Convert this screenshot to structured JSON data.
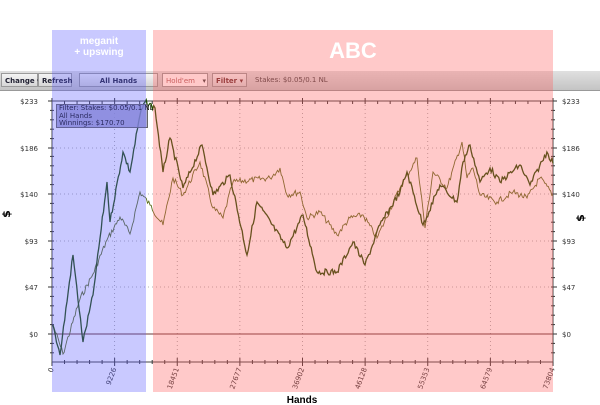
{
  "toolbar": {
    "change_label": "Change",
    "refresh_label": "Refresh",
    "all_hands_label": "All Hands",
    "game_select_value": "Hold'em",
    "filter_label": "Filter",
    "stakes_text": "Stakes: $0.05/0.1 NL"
  },
  "legend": {
    "line1": "Filter: Stakes: $0.05/0.1 NL",
    "line2": "All Hands",
    "line3": "Winnings: $170.70"
  },
  "overlays": {
    "left_label_line1": "meganit",
    "left_label_line2": "+ upswing",
    "right_label": "ABC",
    "left_color": "#c8c8ff",
    "right_color": "#ffc8c8"
  },
  "chart_data": {
    "type": "line",
    "xlabel": "Hands",
    "ylabel": "$",
    "xlim": [
      0,
      73804
    ],
    "ylim": [
      -28,
      233
    ],
    "x_ticks": [
      "0",
      "9226",
      "18451",
      "27677",
      "36902",
      "46128",
      "55353",
      "64579",
      "73804"
    ],
    "y_ticks": [
      "$0",
      "$47",
      "$93",
      "$140",
      "$186",
      "$233"
    ],
    "y_tick_values": [
      0,
      47,
      93,
      140,
      186,
      233
    ],
    "grid": true,
    "colors": {
      "winnings": "#1f4d00",
      "second": "#5a6e1e",
      "grid": "#999999"
    },
    "series": [
      {
        "key": "winnings",
        "x": [
          150,
          1180,
          3090,
          4570,
          6040,
          8100,
          8540,
          10460,
          11490,
          12960,
          13700,
          15170,
          16350,
          17380,
          19300,
          22100,
          23720,
          26220,
          28730,
          30200,
          34620,
          36970,
          39040,
          41980,
          44340,
          46110,
          48310,
          51260,
          52290,
          54650,
          57150,
          59660,
          60540,
          61570,
          63050,
          64520,
          65990,
          68940,
          70410,
          72910,
          73804
        ],
        "y": [
          9,
          -21,
          79,
          -8,
          39,
          152,
          112,
          182,
          162,
          219,
          232,
          226,
          162,
          196,
          146,
          189,
          139,
          159,
          79,
          132,
          86,
          119,
          62,
          62,
          92,
          69,
          109,
          142,
          162,
          109,
          149,
          132,
          172,
          189,
          152,
          166,
          152,
          169,
          149,
          182,
          170.7
        ]
      },
      {
        "key": "second",
        "x": [
          150,
          1620,
          4120,
          6040,
          8100,
          10020,
          11490,
          12960,
          14440,
          16350,
          17820,
          19300,
          21800,
          23720,
          25190,
          26660,
          32110,
          33590,
          34620,
          36530,
          37560,
          39480,
          41980,
          43900,
          45810,
          47880,
          51260,
          53770,
          54950,
          56120,
          58190,
          60400,
          61130,
          62010,
          63050,
          65550,
          67910,
          69980,
          71890,
          73804
        ],
        "y": [
          9,
          -20,
          35,
          60,
          94,
          117,
          100,
          142,
          129,
          109,
          156,
          139,
          172,
          126,
          116,
          152,
          156,
          166,
          139,
          142,
          116,
          122,
          99,
          116,
          119,
          96,
          146,
          176,
          106,
          162,
          146,
          192,
          156,
          166,
          139,
          132,
          142,
          136,
          156,
          139
        ]
      }
    ]
  }
}
